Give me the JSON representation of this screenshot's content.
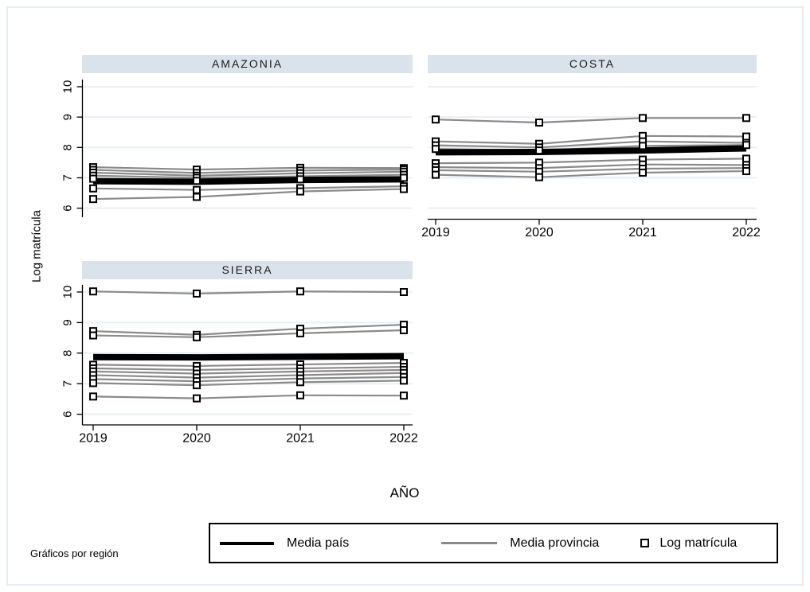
{
  "figure": {
    "y_axis_title": "Log matrícula",
    "x_axis_title": "AÑO",
    "note": "Gráficos por región"
  },
  "legend": {
    "items": [
      {
        "label": "Media país",
        "symbol": "thick-black-line"
      },
      {
        "label": "Media provincia",
        "symbol": "gray-line"
      },
      {
        "label": "Log matrícula",
        "symbol": "hollow-square-marker"
      }
    ]
  },
  "colors": {
    "media_pais": "#000000",
    "media_provincia": "#8a8a8a",
    "marker_stroke": "#000000",
    "marker_fill": "#ffffff",
    "panel_header_bg": "#dae3eb",
    "gridline": "#e9eff4",
    "axis": "#000000",
    "frame_border": "#e4ebf1"
  },
  "chart_data": {
    "type": "line",
    "x": [
      2019,
      2020,
      2021,
      2022
    ],
    "xlabel": "AÑO",
    "ylabel": "Log matrícula",
    "yticks": [
      6,
      7,
      8,
      9,
      10
    ],
    "ylim": [
      5.7,
      10.3
    ],
    "grid": true,
    "legend_position": "bottom",
    "panels": [
      {
        "title": "AMAZONIA",
        "media_pais": [
          6.89,
          6.87,
          6.93,
          6.95
        ],
        "provinces": [
          [
            7.35,
            7.27,
            7.33,
            7.32
          ],
          [
            7.26,
            7.16,
            7.24,
            7.27
          ],
          [
            7.17,
            7.07,
            7.15,
            7.2
          ],
          [
            7.07,
            7.0,
            7.05,
            7.1
          ],
          [
            6.97,
            6.9,
            6.95,
            7.0
          ],
          [
            6.65,
            6.6,
            6.66,
            6.72
          ],
          [
            6.3,
            6.37,
            6.55,
            6.63
          ]
        ]
      },
      {
        "title": "COSTA",
        "media_pais": [
          7.84,
          7.85,
          7.9,
          7.97
        ],
        "provinces": [
          [
            8.92,
            8.82,
            8.97,
            8.97
          ],
          [
            8.2,
            8.12,
            8.38,
            8.36
          ],
          [
            8.07,
            8.0,
            8.2,
            8.15
          ],
          [
            7.95,
            7.9,
            8.05,
            8.08
          ],
          [
            7.48,
            7.5,
            7.6,
            7.63
          ],
          [
            7.35,
            7.32,
            7.44,
            7.42
          ],
          [
            7.25,
            7.2,
            7.3,
            7.32
          ],
          [
            7.1,
            7.02,
            7.17,
            7.22
          ]
        ]
      },
      {
        "title": "SIERRA",
        "media_pais": [
          7.87,
          7.86,
          7.88,
          7.9
        ],
        "provinces": [
          [
            10.02,
            9.95,
            10.02,
            10.0
          ],
          [
            8.72,
            8.6,
            8.8,
            8.93
          ],
          [
            8.58,
            8.52,
            8.65,
            8.75
          ],
          [
            7.62,
            7.58,
            7.63,
            7.68
          ],
          [
            7.5,
            7.45,
            7.5,
            7.55
          ],
          [
            7.4,
            7.33,
            7.4,
            7.45
          ],
          [
            7.28,
            7.2,
            7.28,
            7.35
          ],
          [
            7.15,
            7.08,
            7.17,
            7.22
          ],
          [
            7.02,
            6.95,
            7.05,
            7.1
          ],
          [
            6.58,
            6.52,
            6.62,
            6.61
          ]
        ]
      }
    ]
  }
}
